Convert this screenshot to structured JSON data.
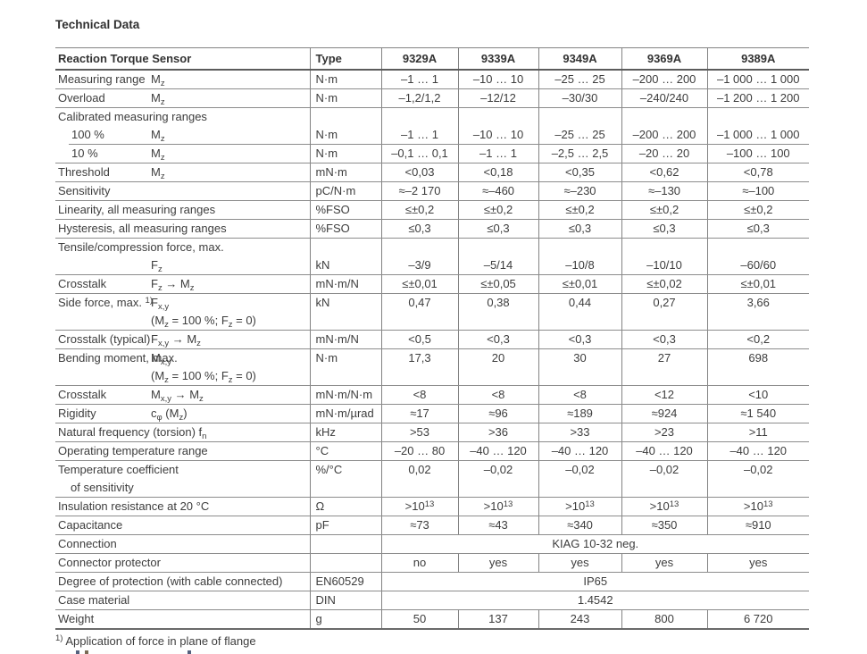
{
  "colors": {
    "text": "#3d3d3d",
    "rule": "#8c8c8c",
    "header_rule": "#5c5c5c",
    "title": "#303030"
  },
  "title": "Technical Data",
  "footnote": {
    "marker": "1)",
    "text": "Application of force in plane of flange"
  },
  "table": {
    "header": {
      "param": "Reaction Torque Sensor",
      "type_col": "Type",
      "models": [
        "9329A",
        "9339A",
        "9349A",
        "9369A",
        "9389A"
      ]
    },
    "rows": [
      {
        "label": "Measuring range",
        "symbol": "M_{z}",
        "unit": "N·m",
        "values": [
          "–1 … 1",
          "–10 … 10",
          "–25 … 25",
          "–200 … 200",
          "–1 000 … 1 000"
        ]
      },
      {
        "label": "Overload",
        "symbol": "M_{z}",
        "unit": "N·m",
        "values": [
          "–1,2/1,2",
          "–12/12",
          "–30/30",
          "–240/240",
          "–1 200 … 1 200"
        ]
      },
      {
        "label": "Calibrated measuring ranges",
        "unit": "",
        "values": [
          "",
          "",
          "",
          "",
          ""
        ],
        "rule": "none"
      },
      {
        "label": "100 %",
        "indent": true,
        "symbol": "M_{z}",
        "unit": "N·m",
        "values": [
          "–1 … 1",
          "–10 … 10",
          "–25 … 25",
          "–200 … 200",
          "–1 000 … 1 000"
        ],
        "rule": "partial"
      },
      {
        "label": "10 %",
        "indent": true,
        "symbol": "M_{z}",
        "unit": "N·m",
        "values": [
          "–0,1 … 0,1",
          "–1 … 1",
          "–2,5 … 2,5",
          "–20 … 20",
          "–100 … 100"
        ]
      },
      {
        "label": "Threshold",
        "symbol": "M_{z}",
        "unit": "mN·m",
        "values": [
          "<0,03",
          "<0,18",
          "<0,35",
          "<0,62",
          "<0,78"
        ]
      },
      {
        "label": "Sensitivity",
        "unit": "pC/N·m",
        "values": [
          "≈–2 170",
          "≈–460",
          "≈–230",
          "≈–130",
          "≈–100"
        ]
      },
      {
        "label": "Linearity, all measuring ranges",
        "unit": "%FSO",
        "values": [
          "≤±0,2",
          "≤±0,2",
          "≤±0,2",
          "≤±0,2",
          "≤±0,2"
        ]
      },
      {
        "label": "Hysteresis, all measuring ranges",
        "unit": "%FSO",
        "values": [
          "≤0,3",
          "≤0,3",
          "≤0,3",
          "≤0,3",
          "≤0,3"
        ]
      },
      {
        "label": "Tensile/compression force, max.",
        "unit": "",
        "values": [
          "",
          "",
          "",
          "",
          ""
        ],
        "rule": "none"
      },
      {
        "label": "",
        "symbol": "F_{z}",
        "unit": "kN",
        "values": [
          "–3/9",
          "–5/14",
          "–10/8",
          "–10/10",
          "–60/60"
        ]
      },
      {
        "label": "Crosstalk",
        "symbol": "F_{z} → M_{z}",
        "unit": "mN·m/N",
        "values": [
          "≤±0,01",
          "≤±0,05",
          "≤±0,01",
          "≤±0,02",
          "≤±0,01"
        ]
      },
      {
        "label": "Side force, max. ^{1)}",
        "symbol": "F_{x,y}",
        "symbol2": "(M_{z} = 100 %; F_{z} = 0)",
        "unit": "kN",
        "values": [
          "0,47",
          "0,38",
          "0,44",
          "0,27",
          "3,66"
        ]
      },
      {
        "label": "Crosstalk (typical)",
        "symbol": "F_{x,y} → M_{z}",
        "unit": "mN·m/N",
        "values": [
          "<0,5",
          "<0,3",
          "<0,3",
          "<0,3",
          "<0,2"
        ]
      },
      {
        "label": "Bending moment, max.",
        "symbol": "M_{x,y}",
        "symbol2": "(M_{z} = 100 %; F_{z} = 0)",
        "unit": "N·m",
        "values": [
          "17,3",
          "20",
          "30",
          "27",
          "698"
        ]
      },
      {
        "label": "Crosstalk",
        "symbol": "M_{x,y} → M_{z}",
        "unit": "mN·m/N·m",
        "values": [
          "<8",
          "<8",
          "<8",
          "<12",
          "<10"
        ]
      },
      {
        "label": "Rigidity",
        "symbol": "c_{φ} (M_{z})",
        "unit": "mN·m/µrad",
        "values": [
          "≈17",
          "≈96",
          "≈189",
          "≈924",
          "≈1 540"
        ]
      },
      {
        "label": "Natural frequency (torsion) f_{n}",
        "unit": "kHz",
        "values": [
          ">53",
          ">36",
          ">33",
          ">23",
          ">11"
        ]
      },
      {
        "label": "Operating temperature range",
        "unit": "°C",
        "values": [
          "–20 … 80",
          "–40 … 120",
          "–40 … 120",
          "–40 … 120",
          "–40 … 120"
        ]
      },
      {
        "label": "Temperature coefficient",
        "label2": "of sensitivity",
        "unit": "%/°C",
        "values": [
          "0,02",
          "–0,02",
          "–0,02",
          "–0,02",
          "–0,02"
        ]
      },
      {
        "label": "Insulation resistance at 20 °C",
        "unit": "Ω",
        "values": [
          ">10^{13}",
          ">10^{13}",
          ">10^{13}",
          ">10^{13}",
          ">10^{13}"
        ]
      },
      {
        "label": "Capacitance",
        "unit": "pF",
        "values": [
          "≈73",
          "≈43",
          "≈340",
          "≈350",
          "≈910"
        ]
      },
      {
        "label": "Connection",
        "unit": "",
        "span": "KIAG 10-32 neg."
      },
      {
        "label": "Connector protector",
        "unit": "",
        "values": [
          "no",
          "yes",
          "yes",
          "yes",
          "yes"
        ]
      },
      {
        "label": "Degree of protection (with cable connected)",
        "unit": "EN60529",
        "span": "IP65"
      },
      {
        "label": "Case material",
        "unit": "DIN",
        "span": "1.4542"
      },
      {
        "label": "Weight",
        "unit": "g",
        "values": [
          "50",
          "137",
          "243",
          "800",
          "6 720"
        ]
      }
    ]
  }
}
